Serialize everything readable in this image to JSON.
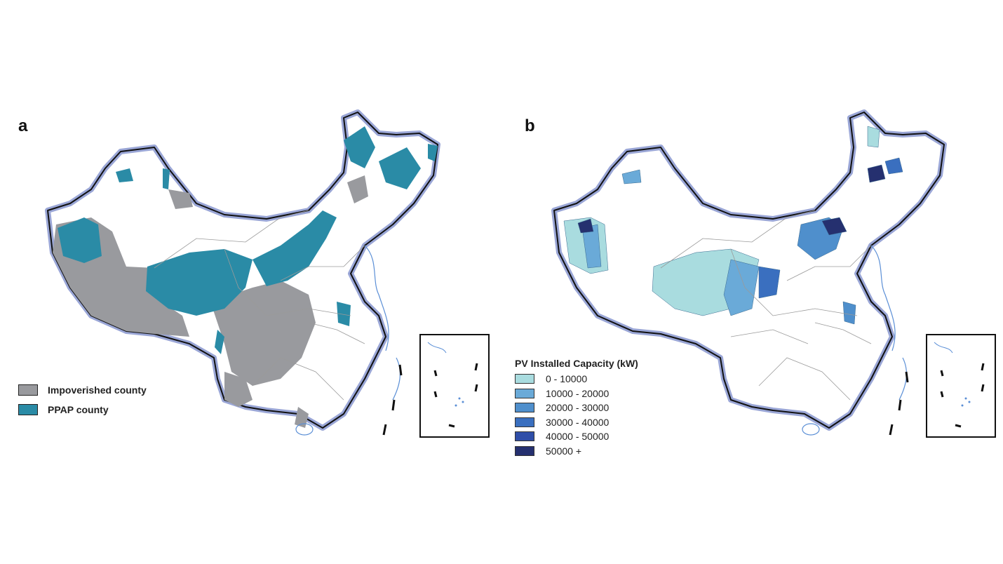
{
  "panel_a": {
    "label": "a",
    "legend": [
      {
        "label": "Impoverished county",
        "color": "#999a9e"
      },
      {
        "label": "PPAP county",
        "color": "#2a8ba6"
      }
    ]
  },
  "panel_b": {
    "label": "b",
    "legend_title": "PV Installed Capacity (kW)",
    "legend": [
      {
        "label": "0 - 10000",
        "color": "#a9dcdf"
      },
      {
        "label": "10000 - 20000",
        "color": "#6aaad8"
      },
      {
        "label": "20000 - 30000",
        "color": "#4f8fcc"
      },
      {
        "label": "30000 - 40000",
        "color": "#3a6fbf"
      },
      {
        "label": "40000 - 50000",
        "color": "#2f4ea8"
      },
      {
        "label": "50000 +",
        "color": "#25306f"
      }
    ]
  },
  "colors": {
    "border_halo": "#9aa6d6",
    "border": "#111111",
    "province_line": "#9a9a9a",
    "coast": "#5b8fd6"
  }
}
